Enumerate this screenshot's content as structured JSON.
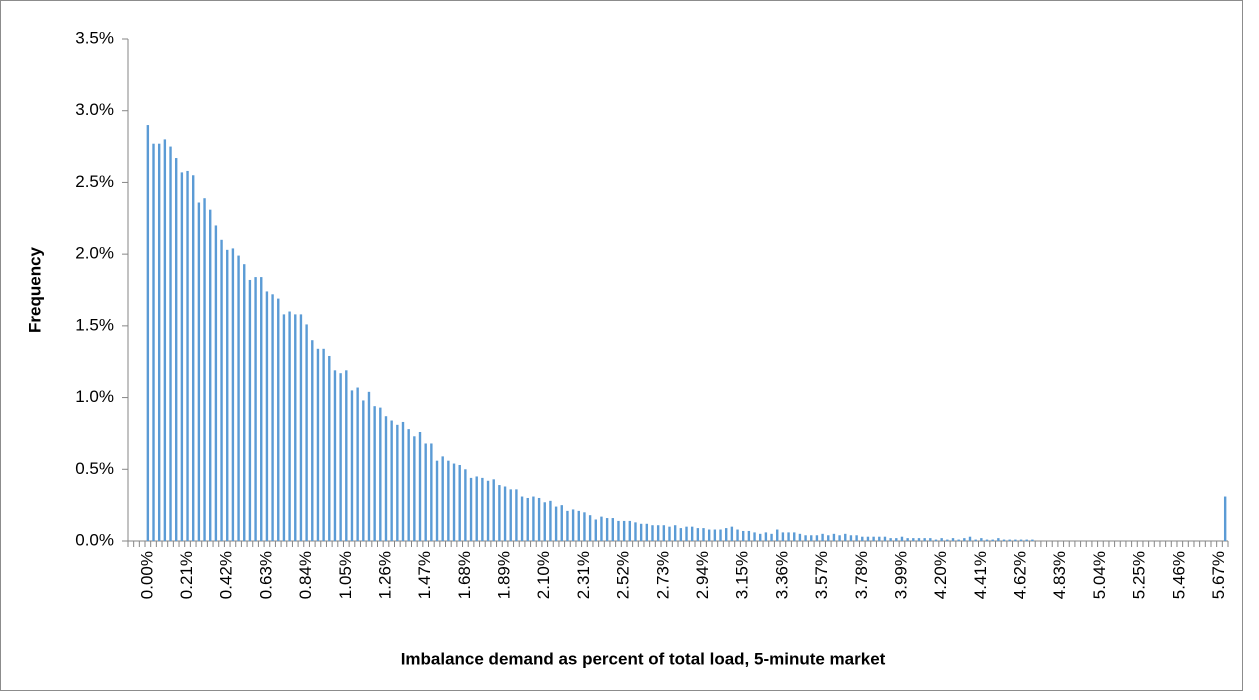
{
  "chart_data": {
    "type": "bar",
    "x_label": "Imbalance  demand as percent of total load, 5-minute market",
    "y_label": "Frequency",
    "color": "#5b9bd5",
    "ylim": [
      0,
      3.5
    ],
    "yticks": [
      {
        "value": 0,
        "label": "0.0%"
      },
      {
        "value": 0.5,
        "label": "0.5%"
      },
      {
        "value": 1,
        "label": "1.0%"
      },
      {
        "value": 1.5,
        "label": "1.5%"
      },
      {
        "value": 2,
        "label": "2.0%"
      },
      {
        "value": 2.5,
        "label": "2.5%"
      },
      {
        "value": 3,
        "label": "3.0%"
      },
      {
        "value": 3.5,
        "label": "3.5%"
      }
    ],
    "grid": false,
    "categories": [
      null,
      null,
      null,
      "0.00%",
      null,
      null,
      null,
      null,
      null,
      null,
      "0.21%",
      null,
      null,
      null,
      null,
      null,
      null,
      "0.42%",
      null,
      null,
      null,
      null,
      null,
      null,
      "0.63%",
      null,
      null,
      null,
      null,
      null,
      null,
      "0.84%",
      null,
      null,
      null,
      null,
      null,
      null,
      "1.05%",
      null,
      null,
      null,
      null,
      null,
      null,
      "1.26%",
      null,
      null,
      null,
      null,
      null,
      null,
      "1.47%",
      null,
      null,
      null,
      null,
      null,
      null,
      "1.68%",
      null,
      null,
      null,
      null,
      null,
      null,
      "1.89%",
      null,
      null,
      null,
      null,
      null,
      null,
      "2.10%",
      null,
      null,
      null,
      null,
      null,
      null,
      "2.31%",
      null,
      null,
      null,
      null,
      null,
      null,
      "2.52%",
      null,
      null,
      null,
      null,
      null,
      null,
      "2.73%",
      null,
      null,
      null,
      null,
      null,
      null,
      "2.94%",
      null,
      null,
      null,
      null,
      null,
      null,
      "3.15%",
      null,
      null,
      null,
      null,
      null,
      null,
      "3.36%",
      null,
      null,
      null,
      null,
      null,
      null,
      "3.57%",
      null,
      null,
      null,
      null,
      null,
      null,
      "3.78%",
      null,
      null,
      null,
      null,
      null,
      null,
      "3.99%",
      null,
      null,
      null,
      null,
      null,
      null,
      "4.20%",
      null,
      null,
      null,
      null,
      null,
      null,
      "4.41%",
      null,
      null,
      null,
      null,
      null,
      null,
      "4.62%",
      null,
      null,
      null,
      null,
      null,
      null,
      "4.83%",
      null,
      null,
      null,
      null,
      null,
      null,
      "5.04%",
      null,
      null,
      null,
      null,
      null,
      null,
      "5.25%",
      null,
      null,
      null,
      null,
      null,
      null,
      "5.46%",
      null,
      null,
      null,
      null,
      null,
      null,
      "5.67%",
      null
    ],
    "values": [
      0,
      0,
      0,
      2.9,
      2.77,
      2.77,
      2.8,
      2.75,
      2.67,
      2.57,
      2.58,
      2.55,
      2.36,
      2.39,
      2.31,
      2.2,
      2.1,
      2.03,
      2.04,
      1.99,
      1.93,
      1.82,
      1.84,
      1.84,
      1.74,
      1.72,
      1.69,
      1.58,
      1.6,
      1.58,
      1.58,
      1.51,
      1.4,
      1.34,
      1.34,
      1.29,
      1.19,
      1.17,
      1.19,
      1.05,
      1.07,
      0.98,
      1.04,
      0.94,
      0.93,
      0.87,
      0.84,
      0.81,
      0.83,
      0.78,
      0.73,
      0.76,
      0.68,
      0.68,
      0.56,
      0.59,
      0.56,
      0.54,
      0.53,
      0.5,
      0.44,
      0.45,
      0.44,
      0.42,
      0.43,
      0.39,
      0.38,
      0.36,
      0.36,
      0.31,
      0.3,
      0.31,
      0.3,
      0.27,
      0.28,
      0.24,
      0.25,
      0.21,
      0.22,
      0.21,
      0.2,
      0.18,
      0.15,
      0.17,
      0.16,
      0.16,
      0.14,
      0.14,
      0.14,
      0.13,
      0.12,
      0.12,
      0.11,
      0.11,
      0.11,
      0.1,
      0.11,
      0.09,
      0.1,
      0.1,
      0.09,
      0.09,
      0.08,
      0.08,
      0.08,
      0.09,
      0.1,
      0.08,
      0.07,
      0.07,
      0.06,
      0.05,
      0.06,
      0.05,
      0.08,
      0.06,
      0.06,
      0.06,
      0.05,
      0.04,
      0.04,
      0.04,
      0.05,
      0.04,
      0.05,
      0.04,
      0.05,
      0.04,
      0.04,
      0.03,
      0.03,
      0.03,
      0.03,
      0.03,
      0.02,
      0.02,
      0.03,
      0.02,
      0.02,
      0.02,
      0.02,
      0.02,
      0.01,
      0.02,
      0.01,
      0.02,
      0.01,
      0.02,
      0.03,
      0.01,
      0.02,
      0.01,
      0.01,
      0.02,
      0.01,
      0.01,
      0.01,
      0.01,
      0.01,
      0.01,
      0,
      0,
      0,
      0,
      0,
      0,
      0,
      0,
      0,
      0,
      0,
      0,
      0,
      0,
      0,
      0,
      0,
      0,
      0,
      0,
      0,
      0,
      0,
      0,
      0,
      0,
      0,
      0,
      0,
      0,
      0,
      0,
      0,
      0.31
    ]
  }
}
